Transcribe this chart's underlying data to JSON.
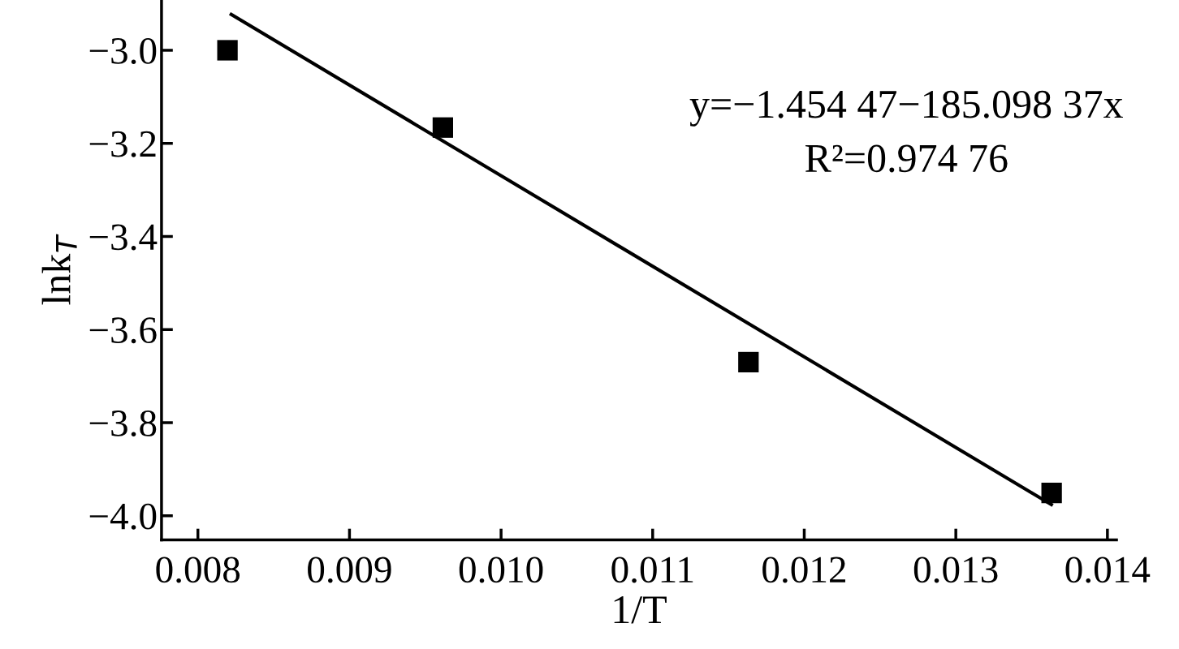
{
  "chart_data": {
    "type": "scatter",
    "xlabel": "1/T",
    "ylabel": "lnk$_{T}$",
    "marker": "square",
    "grid": false,
    "legend": false,
    "xlim": [
      0.00776,
      0.01406
    ],
    "ylim": [
      -4.052,
      -2.892
    ],
    "xticks": [
      0.008,
      0.009,
      {
        "value": 0.01,
        "label": "0.010"
      },
      0.011,
      0.012,
      0.013,
      0.014
    ],
    "yticks": [
      {
        "value": -4.0,
        "label": "−4.0"
      },
      {
        "value": -3.8,
        "label": "−3.8"
      },
      {
        "value": -3.6,
        "label": "−3.6"
      },
      {
        "value": -3.4,
        "label": "−3.4"
      },
      {
        "value": -3.2,
        "label": "−3.2"
      },
      {
        "value": -3.0,
        "label": "−3.0"
      }
    ],
    "series": [
      {
        "color": "#000000",
        "x": [
          0.008195,
          0.009616,
          0.011632,
          0.013632
        ],
        "values": [
          -3.0,
          -3.166,
          -3.67,
          -3.951
        ]
      },
      {
        "type": "line",
        "color": "#000000",
        "marker": "none",
        "line_style": "solid",
        "x": [
          0.00822,
          0.01363
        ],
        "values": [
          -2.923,
          -3.976
        ]
      }
    ],
    "annotations": [
      "y=−1.454 47−185.098 37x",
      "R²=0.974 76"
    ]
  }
}
